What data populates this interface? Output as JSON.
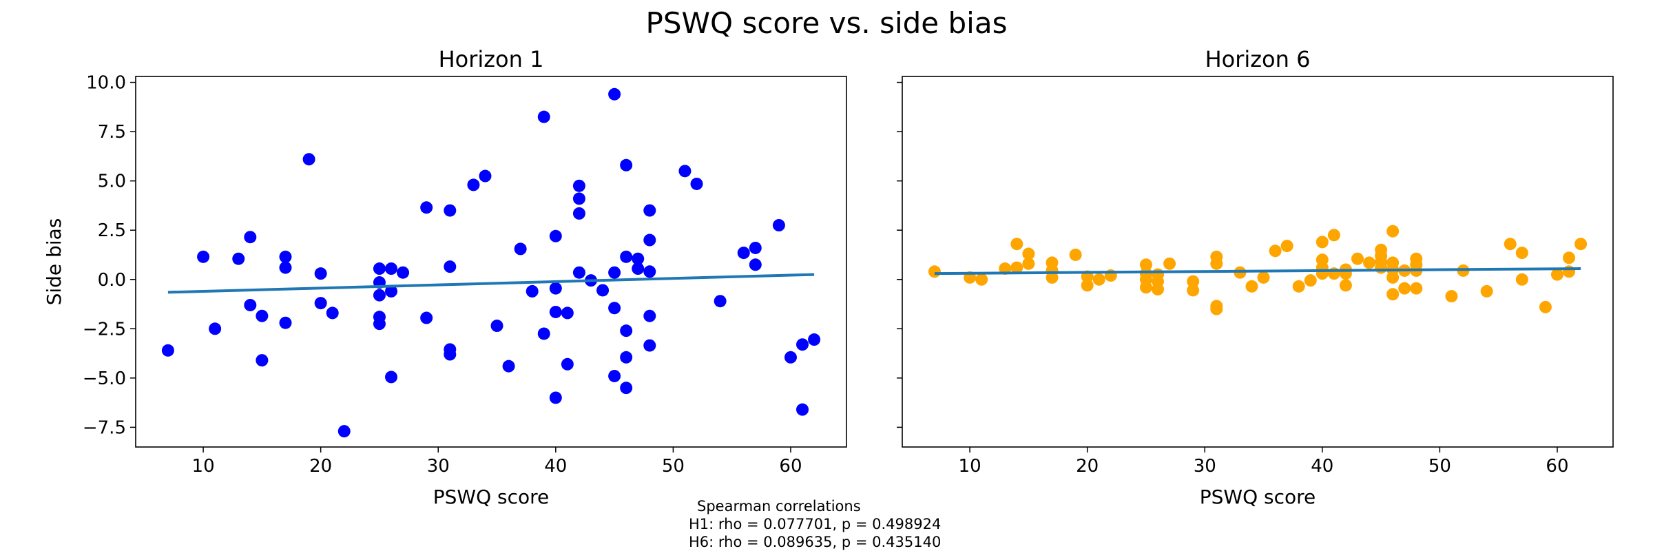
{
  "figure_title": "PSWQ score vs. side bias",
  "footnote": {
    "heading": "Spearman correlations",
    "lines": [
      "H1: rho = 0.077701, p = 0.498924",
      "H6: rho = 0.089635, p = 0.435140"
    ]
  },
  "chart_data": [
    {
      "type": "scatter",
      "title": "Horizon 1",
      "xlabel": "PSWQ score",
      "ylabel": "Side bias",
      "xlim": [
        4.25,
        64.75
      ],
      "ylim": [
        -8.5,
        10.3
      ],
      "xticks": [
        10,
        20,
        30,
        40,
        50,
        60
      ],
      "yticks": [
        -7.5,
        -5.0,
        -2.5,
        0.0,
        2.5,
        5.0,
        7.5,
        10.0
      ],
      "ytick_labels": [
        "−7.5",
        "−5.0",
        "−2.5",
        "0.0",
        "2.5",
        "5.0",
        "7.5",
        "10.0"
      ],
      "grid": false,
      "point_color": "#0000ff",
      "fit_color": "#1f77b4",
      "fit_line": {
        "x": [
          7,
          62
        ],
        "y": [
          -0.65,
          0.25
        ]
      },
      "points": [
        [
          7,
          -3.6
        ],
        [
          10,
          1.15
        ],
        [
          11,
          -2.5
        ],
        [
          13,
          1.05
        ],
        [
          14,
          2.15
        ],
        [
          14,
          -1.3
        ],
        [
          15,
          -4.1
        ],
        [
          15,
          -1.85
        ],
        [
          17,
          1.15
        ],
        [
          17,
          0.6
        ],
        [
          17,
          -2.2
        ],
        [
          19,
          6.1
        ],
        [
          20,
          0.3
        ],
        [
          20,
          -1.2
        ],
        [
          21,
          -1.7
        ],
        [
          22,
          -7.7
        ],
        [
          25,
          0.55
        ],
        [
          25,
          -0.15
        ],
        [
          25,
          -0.8
        ],
        [
          25,
          -1.9
        ],
        [
          25,
          -2.25
        ],
        [
          26,
          0.55
        ],
        [
          26,
          -0.6
        ],
        [
          26,
          -4.95
        ],
        [
          27,
          0.35
        ],
        [
          29,
          3.65
        ],
        [
          29,
          -1.95
        ],
        [
          31,
          3.5
        ],
        [
          31,
          0.65
        ],
        [
          31,
          -3.55
        ],
        [
          31,
          -3.8
        ],
        [
          33,
          4.8
        ],
        [
          34,
          5.25
        ],
        [
          35,
          -2.35
        ],
        [
          36,
          -4.4
        ],
        [
          37,
          1.55
        ],
        [
          38,
          -0.6
        ],
        [
          39,
          8.25
        ],
        [
          39,
          -2.75
        ],
        [
          40,
          2.2
        ],
        [
          40,
          -0.45
        ],
        [
          40,
          -1.65
        ],
        [
          40,
          -6.0
        ],
        [
          41,
          -1.7
        ],
        [
          41,
          -4.3
        ],
        [
          42,
          4.75
        ],
        [
          42,
          4.1
        ],
        [
          42,
          3.35
        ],
        [
          42,
          0.35
        ],
        [
          43,
          -0.05
        ],
        [
          44,
          -0.55
        ],
        [
          45,
          9.4
        ],
        [
          45,
          0.35
        ],
        [
          45,
          -1.45
        ],
        [
          45,
          -4.9
        ],
        [
          46,
          5.8
        ],
        [
          46,
          1.15
        ],
        [
          46,
          -2.6
        ],
        [
          46,
          -3.95
        ],
        [
          46,
          -5.5
        ],
        [
          47,
          1.05
        ],
        [
          47,
          0.55
        ],
        [
          48,
          3.5
        ],
        [
          48,
          2.0
        ],
        [
          48,
          0.4
        ],
        [
          48,
          -1.85
        ],
        [
          48,
          -3.35
        ],
        [
          51,
          5.5
        ],
        [
          52,
          4.85
        ],
        [
          54,
          -1.1
        ],
        [
          56,
          1.35
        ],
        [
          57,
          1.6
        ],
        [
          57,
          0.75
        ],
        [
          59,
          2.75
        ],
        [
          60,
          -3.95
        ],
        [
          61,
          -3.3
        ],
        [
          61,
          -6.6
        ],
        [
          62,
          -3.05
        ]
      ]
    },
    {
      "type": "scatter",
      "title": "Horizon 6",
      "xlabel": "PSWQ score",
      "ylabel": "",
      "xlim": [
        4.25,
        64.75
      ],
      "ylim": [
        -8.5,
        10.3
      ],
      "xticks": [
        10,
        20,
        30,
        40,
        50,
        60
      ],
      "yticks": [
        -7.5,
        -5.0,
        -2.5,
        0.0,
        2.5,
        5.0,
        7.5,
        10.0
      ],
      "grid": false,
      "point_color": "#ffa500",
      "fit_color": "#1f77b4",
      "fit_line": {
        "x": [
          7,
          62
        ],
        "y": [
          0.3,
          0.55
        ]
      },
      "points": [
        [
          7,
          0.4
        ],
        [
          10,
          0.1
        ],
        [
          11,
          0.0
        ],
        [
          13,
          0.55
        ],
        [
          14,
          1.8
        ],
        [
          14,
          0.6
        ],
        [
          15,
          1.3
        ],
        [
          15,
          0.8
        ],
        [
          17,
          0.85
        ],
        [
          17,
          0.45
        ],
        [
          17,
          0.1
        ],
        [
          19,
          1.25
        ],
        [
          20,
          0.15
        ],
        [
          20,
          -0.3
        ],
        [
          21,
          0.0
        ],
        [
          22,
          0.2
        ],
        [
          25,
          0.75
        ],
        [
          25,
          0.3
        ],
        [
          25,
          0.0
        ],
        [
          25,
          -0.4
        ],
        [
          26,
          0.25
        ],
        [
          26,
          -0.1
        ],
        [
          26,
          -0.5
        ],
        [
          27,
          0.8
        ],
        [
          29,
          -0.1
        ],
        [
          29,
          -0.55
        ],
        [
          31,
          1.15
        ],
        [
          31,
          0.8
        ],
        [
          31,
          -1.35
        ],
        [
          31,
          -1.5
        ],
        [
          33,
          0.35
        ],
        [
          34,
          -0.35
        ],
        [
          35,
          0.1
        ],
        [
          36,
          1.45
        ],
        [
          37,
          1.7
        ],
        [
          38,
          -0.35
        ],
        [
          39,
          -0.05
        ],
        [
          40,
          1.9
        ],
        [
          40,
          1.0
        ],
        [
          40,
          0.6
        ],
        [
          40,
          0.3
        ],
        [
          41,
          2.25
        ],
        [
          41,
          0.3
        ],
        [
          42,
          0.5
        ],
        [
          42,
          0.3
        ],
        [
          42,
          -0.3
        ],
        [
          43,
          1.05
        ],
        [
          44,
          0.85
        ],
        [
          45,
          1.5
        ],
        [
          45,
          1.2
        ],
        [
          45,
          0.9
        ],
        [
          45,
          0.6
        ],
        [
          46,
          2.45
        ],
        [
          46,
          0.85
        ],
        [
          46,
          0.5
        ],
        [
          46,
          0.1
        ],
        [
          46,
          -0.75
        ],
        [
          47,
          0.45
        ],
        [
          47,
          -0.45
        ],
        [
          48,
          1.05
        ],
        [
          48,
          0.75
        ],
        [
          48,
          0.45
        ],
        [
          48,
          -0.45
        ],
        [
          51,
          -0.85
        ],
        [
          52,
          0.45
        ],
        [
          54,
          -0.6
        ],
        [
          56,
          1.8
        ],
        [
          57,
          1.35
        ],
        [
          57,
          0.0
        ],
        [
          59,
          -1.4
        ],
        [
          60,
          0.25
        ],
        [
          61,
          1.1
        ],
        [
          61,
          0.4
        ],
        [
          62,
          1.8
        ]
      ]
    }
  ]
}
